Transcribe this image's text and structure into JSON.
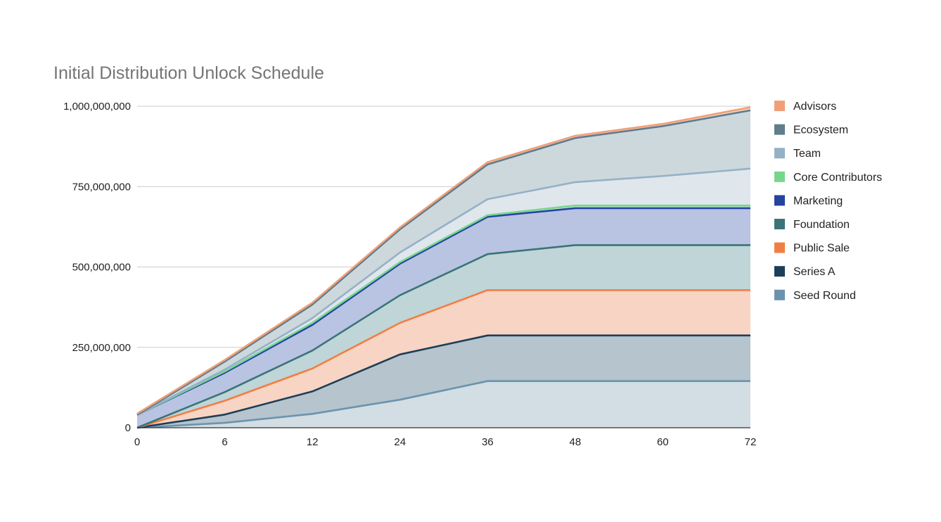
{
  "chart_data": {
    "type": "area",
    "stacked": true,
    "title": "Initial Distribution Unlock Schedule",
    "xlabel": "",
    "ylabel": "",
    "x": [
      0,
      6,
      12,
      24,
      36,
      48,
      60,
      72
    ],
    "x_tick_labels": [
      "0",
      "6",
      "12",
      "24",
      "36",
      "48",
      "60",
      "72"
    ],
    "ylim": [
      0,
      1000000000
    ],
    "y_ticks": [
      0,
      250000000,
      500000000,
      750000000,
      1000000000
    ],
    "y_tick_labels": [
      "0",
      "250,000,000",
      "500,000,000",
      "750,000,000",
      "1,000,000,000"
    ],
    "grid": true,
    "legend_position": "right",
    "series": [
      {
        "name": "Seed Round",
        "color": "#6b93ad",
        "fill": "#d2dde4",
        "values": [
          0,
          15000000,
          43000000,
          87000000,
          145000000,
          145000000,
          145000000,
          145000000
        ]
      },
      {
        "name": "Series A",
        "color": "#1d3e58",
        "fill": "#b5c4cd",
        "values": [
          0,
          26000000,
          70000000,
          141000000,
          142000000,
          142000000,
          142000000,
          142000000
        ]
      },
      {
        "name": "Public Sale",
        "color": "#f07f45",
        "fill": "#f8d4c4",
        "values": [
          0,
          43000000,
          71000000,
          98000000,
          141000000,
          141000000,
          141000000,
          141000000
        ]
      },
      {
        "name": "Foundation",
        "color": "#3a7478",
        "fill": "#bfd5d7",
        "values": [
          0,
          27000000,
          56000000,
          86000000,
          112000000,
          140000000,
          140000000,
          140000000
        ]
      },
      {
        "name": "Marketing",
        "color": "#2544a0",
        "fill": "#b9c3e2",
        "values": [
          40000000,
          60000000,
          80000000,
          98000000,
          116000000,
          115000000,
          115000000,
          115000000
        ]
      },
      {
        "name": "Core Contributors",
        "color": "#77d68c",
        "fill": "#c8ecd2",
        "values": [
          0,
          4000000,
          6000000,
          5000000,
          5000000,
          8000000,
          8000000,
          8000000
        ]
      },
      {
        "name": "Team",
        "color": "#95b1c6",
        "fill": "#dfe6ec",
        "values": [
          0,
          6000000,
          15000000,
          30000000,
          50000000,
          73000000,
          92000000,
          115000000
        ]
      },
      {
        "name": "Ecosystem",
        "color": "#5e7d8d",
        "fill": "#cdd8dd",
        "values": [
          0,
          25000000,
          42000000,
          72000000,
          108000000,
          137000000,
          155000000,
          181000000
        ]
      },
      {
        "name": "Advisors",
        "color": "#f19f78",
        "fill": "#f6d0bd",
        "values": [
          4000000,
          5000000,
          6000000,
          6000000,
          7000000,
          7000000,
          7000000,
          10000000
        ]
      }
    ]
  }
}
